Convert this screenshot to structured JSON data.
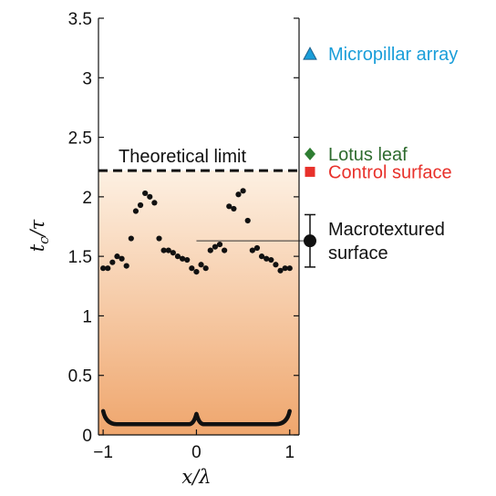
{
  "chart_data": {
    "type": "scatter",
    "xlabel": "x/λ",
    "ylabel_main": "t",
    "ylabel_sub": "c",
    "ylabel_tail": "/τ",
    "xlim": [
      -1.05,
      1.1
    ],
    "ylim": [
      0,
      3.5
    ],
    "x_ticks": [
      -1,
      0,
      1
    ],
    "x_tick_labels": [
      "−1",
      "0",
      "1"
    ],
    "y_ticks": [
      0,
      0.5,
      1,
      1.5,
      2,
      2.5,
      3,
      3.5
    ],
    "y_tick_labels": [
      "0",
      "0.5",
      "1",
      "1.5",
      "2",
      "2.5",
      "3",
      "3.5"
    ],
    "grid": false,
    "background_gradient": {
      "top_color": "#fdf0e2",
      "bottom_color": "#efa66d",
      "from_y": 2.22,
      "to_y": 0
    },
    "theoretical_limit": {
      "label": "Theoretical limit",
      "y": 2.22
    },
    "macrotextured_mean": {
      "from_x": 0,
      "y": 1.63
    },
    "series": [
      {
        "type": "scatter",
        "color": "#111111",
        "x": [
          -1.0,
          -0.95,
          -0.9,
          -0.85,
          -0.8,
          -0.75,
          -0.7,
          -0.65,
          -0.6,
          -0.55,
          -0.5,
          -0.45,
          -0.4,
          -0.35,
          -0.3,
          -0.25,
          -0.2,
          -0.15,
          -0.1,
          -0.05,
          0.0,
          0.05,
          0.1,
          0.15,
          0.2,
          0.25,
          0.3,
          0.35,
          0.4,
          0.45,
          0.5,
          0.55,
          0.6,
          0.65,
          0.7,
          0.75,
          0.8,
          0.85,
          0.9,
          0.95,
          1.0
        ],
        "y": [
          1.4,
          1.4,
          1.45,
          1.5,
          1.48,
          1.42,
          1.65,
          1.88,
          1.93,
          2.03,
          2.0,
          1.95,
          1.65,
          1.55,
          1.55,
          1.53,
          1.5,
          1.48,
          1.47,
          1.4,
          1.37,
          1.43,
          1.4,
          1.55,
          1.58,
          1.6,
          1.55,
          1.92,
          1.9,
          2.02,
          2.05,
          1.8,
          1.55,
          1.57,
          1.5,
          1.48,
          1.47,
          1.43,
          1.38,
          1.4,
          1.4
        ]
      }
    ],
    "legend": [
      {
        "label": "Micropillar array",
        "marker": "triangle",
        "color": "#1a9ed9",
        "text_color": "#1a9ed9",
        "y": 3.2
      },
      {
        "label": "Lotus leaf",
        "marker": "diamond",
        "color": "#2e7d32",
        "text_color": "#2e6b2e",
        "y": 2.36
      },
      {
        "label": "Control surface",
        "marker": "square",
        "color": "#e8312b",
        "text_color": "#e8312b",
        "y": 2.21
      },
      {
        "label_line1": "Macrotextured",
        "label_line2": "surface",
        "marker": "circle",
        "color": "#111111",
        "text_color": "#111111",
        "y": 1.63,
        "error": [
          1.41,
          1.85
        ]
      }
    ]
  }
}
